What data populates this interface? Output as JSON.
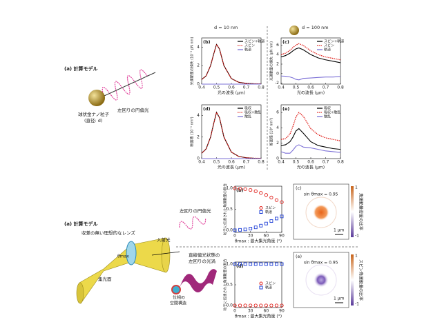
{
  "labels": {
    "top_a": "(a) 計算モデル",
    "top_pol": "左回りの円偏光",
    "top_np": "球状金ナノ粒子",
    "top_d": "(直径: d)",
    "d10": "d = 10 nm",
    "d100": "d = 100 nm",
    "bot_a": "(a) 計算モデル",
    "lens": "収差の無い理想的なレンズ",
    "incident": "入射光",
    "theta": "θmax",
    "focal": "集光面",
    "bot_pol": "左回りの円偏光",
    "vortex1": "直線偏光状態の",
    "vortex2": "左回りの光渦",
    "phase1": "位相の",
    "phase2": "空間構造",
    "img_c": "(c)",
    "img_e": "(e)",
    "sin_c": "sin θmax = 0.95",
    "sin_e": "sin θmax = 0.95",
    "scale_c": "1 μm",
    "scale_e": "1 μm",
    "cb_c_top": "1",
    "cb_c_bot": "-1",
    "cb_c_label": "角運動量密度の比率",
    "cb_e_top": "1",
    "cb_e_bot": "-1",
    "cb_e_label": "スピン角運動量の比率"
  },
  "chart_data": [
    {
      "type": "line",
      "label": "(b)",
      "xlabel": "光の波長 (μm)",
      "ylabel": "光運動量の損失 (10⁻¹ pN nm)",
      "x": [
        0.4,
        0.43,
        0.46,
        0.48,
        0.5,
        0.52,
        0.55,
        0.6,
        0.65,
        0.7,
        0.75,
        0.8
      ],
      "xlim": [
        0.4,
        0.8
      ],
      "xticks": [
        0.4,
        0.5,
        0.6,
        0.7,
        0.8
      ],
      "ylim": [
        0,
        5
      ],
      "yticks": [
        0,
        2,
        4
      ],
      "series": [
        {
          "name": "スピン+軌道",
          "color": "#000000",
          "dash": false,
          "values": [
            0.5,
            0.9,
            2.0,
            3.2,
            4.3,
            3.8,
            2.0,
            0.6,
            0.2,
            0.08,
            0.04,
            0.02
          ]
        },
        {
          "name": "スピン",
          "color": "#e0201b",
          "dash": true,
          "values": [
            0.5,
            0.9,
            2.0,
            3.2,
            4.3,
            3.8,
            2.0,
            0.6,
            0.2,
            0.08,
            0.04,
            0.02
          ]
        },
        {
          "name": "軌道",
          "color": "#7b6fd6",
          "dash": false,
          "values": [
            0,
            0,
            0,
            0,
            0,
            0,
            0,
            0,
            0,
            0,
            0,
            0
          ]
        }
      ]
    },
    {
      "type": "line",
      "label": "(c)",
      "xlabel": "光の波長 (μm)",
      "ylabel": "光運動量の損失 (pN nm)",
      "x": [
        0.4,
        0.43,
        0.46,
        0.48,
        0.5,
        0.52,
        0.55,
        0.6,
        0.65,
        0.7,
        0.75,
        0.8
      ],
      "xlim": [
        0.4,
        0.8
      ],
      "xticks": [
        0.4,
        0.5,
        0.6,
        0.7,
        0.8
      ],
      "ylim": [
        -2.2,
        7.5
      ],
      "yticks": [
        -2,
        0,
        2,
        4,
        6
      ],
      "series": [
        {
          "name": "スピン+軌道",
          "color": "#000000",
          "dash": false,
          "values": [
            3.5,
            3.8,
            4.3,
            4.8,
            5.2,
            5.4,
            5.0,
            4.0,
            3.3,
            2.9,
            2.6,
            2.3
          ]
        },
        {
          "name": "スピン",
          "color": "#e0201b",
          "dash": true,
          "values": [
            4.0,
            4.3,
            4.9,
            5.5,
            6.0,
            6.3,
            5.9,
            4.8,
            4.0,
            3.5,
            3.2,
            2.9
          ]
        },
        {
          "name": "軌道",
          "color": "#7b6fd6",
          "dash": false,
          "values": [
            -0.5,
            -0.55,
            -0.7,
            -0.9,
            -1.2,
            -1.3,
            -1.0,
            -0.9,
            -0.8,
            -0.7,
            -0.7,
            -0.6
          ]
        }
      ]
    },
    {
      "type": "line",
      "label": "(d)",
      "xlabel": "光の波長 (μm)",
      "ylabel": "断面積 (10⁻¹ nm²)",
      "x": [
        0.4,
        0.43,
        0.46,
        0.48,
        0.5,
        0.52,
        0.55,
        0.6,
        0.65,
        0.7,
        0.75,
        0.8
      ],
      "xlim": [
        0.4,
        0.8
      ],
      "xticks": [
        0.4,
        0.5,
        0.6,
        0.7,
        0.8
      ],
      "ylim": [
        0,
        5
      ],
      "yticks": [
        0,
        2,
        4
      ],
      "series": [
        {
          "name": "吸収",
          "color": "#000000",
          "dash": false,
          "values": [
            0.5,
            0.9,
            2.0,
            3.2,
            4.3,
            3.8,
            2.0,
            0.6,
            0.2,
            0.08,
            0.04,
            0.02
          ]
        },
        {
          "name": "吸収+散乱",
          "color": "#e0201b",
          "dash": true,
          "values": [
            0.5,
            0.9,
            2.0,
            3.2,
            4.3,
            3.8,
            2.0,
            0.6,
            0.2,
            0.08,
            0.04,
            0.02
          ]
        },
        {
          "name": "散乱",
          "color": "#7b6fd6",
          "dash": false,
          "values": [
            0,
            0,
            0,
            0,
            0,
            0,
            0,
            0,
            0,
            0,
            0,
            0
          ]
        }
      ]
    },
    {
      "type": "line",
      "label": "(e)",
      "xlabel": "光の波長 (μm)",
      "ylabel": "断面積 (10⁴ nm²)",
      "x": [
        0.4,
        0.43,
        0.46,
        0.48,
        0.5,
        0.52,
        0.55,
        0.6,
        0.65,
        0.7,
        0.75,
        0.8
      ],
      "xlim": [
        0.4,
        0.8
      ],
      "xticks": [
        0.4,
        0.5,
        0.6,
        0.7,
        0.8
      ],
      "ylim": [
        0,
        7
      ],
      "yticks": [
        0,
        2,
        4,
        6
      ],
      "series": [
        {
          "name": "吸収",
          "color": "#000000",
          "dash": false,
          "values": [
            1.7,
            1.8,
            2.2,
            2.8,
            3.6,
            3.9,
            3.3,
            2.2,
            1.7,
            1.5,
            1.3,
            1.2
          ]
        },
        {
          "name": "吸収+散乱",
          "color": "#e0201b",
          "dash": true,
          "values": [
            2.5,
            2.6,
            3.2,
            4.2,
            5.4,
            6.0,
            5.5,
            3.9,
            3.1,
            2.7,
            2.5,
            2.3
          ]
        },
        {
          "name": "散乱",
          "color": "#7b6fd6",
          "dash": false,
          "values": [
            0.9,
            0.7,
            0.7,
            1.1,
            1.6,
            1.8,
            1.5,
            1.4,
            1.2,
            1.0,
            0.9,
            0.8
          ]
        }
      ]
    },
    {
      "type": "scatter",
      "label": "(b)",
      "xlabel": "θmax : 最大集光角度 (°)",
      "ylabel": "粒子に伝達された角運動量の割合",
      "x": [
        0,
        10,
        20,
        30,
        40,
        50,
        60,
        70,
        80,
        90
      ],
      "xlim": [
        0,
        90
      ],
      "xticks": [
        0,
        30,
        60,
        90
      ],
      "ylim": [
        -0.05,
        1.05
      ],
      "yticks": [
        {
          "value": 0,
          "label": "0.0"
        },
        0.5,
        {
          "value": 1,
          "label": "1.0"
        }
      ],
      "series": [
        {
          "name": "スピン",
          "color": "#e0201b",
          "marker": "circle",
          "values": [
            1.0,
            0.99,
            0.98,
            0.96,
            0.93,
            0.89,
            0.84,
            0.78,
            0.72,
            0.67
          ]
        },
        {
          "name": "軌道",
          "color": "#1f3fd6",
          "marker": "square",
          "values": [
            0,
            0.01,
            0.02,
            0.04,
            0.07,
            0.11,
            0.16,
            0.22,
            0.28,
            0.33
          ]
        }
      ]
    },
    {
      "type": "scatter",
      "label": "(d)",
      "xlabel": "θmax : 最大集光角度 (°)",
      "ylabel": "粒子に伝達された角運動量の割合",
      "x": [
        0,
        10,
        20,
        30,
        40,
        50,
        60,
        70,
        80,
        90
      ],
      "xlim": [
        0,
        90
      ],
      "xticks": [
        0,
        30,
        60,
        90
      ],
      "ylim": [
        -0.05,
        1.05
      ],
      "yticks": [
        {
          "value": 0,
          "label": "0.0"
        },
        0.5,
        {
          "value": 1,
          "label": "1.0"
        }
      ],
      "series": [
        {
          "name": "スピン",
          "color": "#e0201b",
          "marker": "circle",
          "values": [
            0,
            0,
            0,
            0,
            0,
            0,
            0,
            0,
            0,
            0
          ]
        },
        {
          "name": "軌道",
          "color": "#1f3fd6",
          "marker": "square",
          "values": [
            1,
            1,
            1,
            1,
            1,
            1,
            1,
            1,
            1,
            1
          ]
        }
      ]
    }
  ]
}
